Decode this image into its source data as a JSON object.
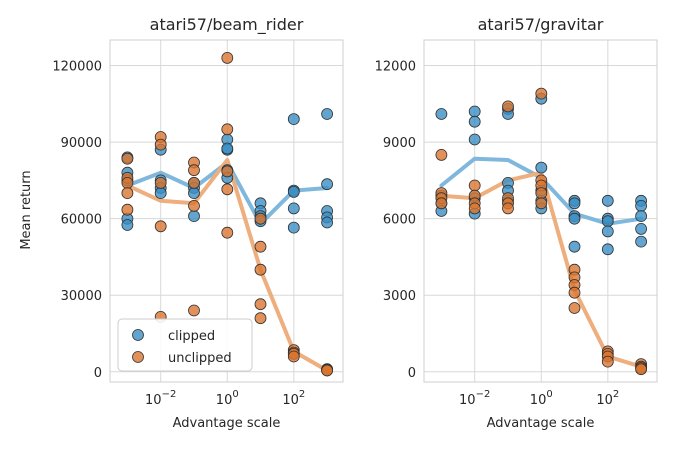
{
  "ylabel": "Mean return",
  "xlabel": "Advantage scale",
  "legend": {
    "placement": "lower-left",
    "entries": [
      {
        "label": "clipped",
        "color": "#3a8fc4"
      },
      {
        "label": "unclipped",
        "color": "#d9752f"
      }
    ]
  },
  "colors": {
    "clipped_point": "#3a8fc4",
    "unclipped_point": "#d9752f",
    "clipped_line": "#7fb8dc",
    "unclipped_line": "#eeae7d",
    "grid": "#d8d8d8"
  },
  "chart_data": [
    {
      "type": "scatter",
      "title": "atari57/beam_rider",
      "xlabel": "Advantage scale",
      "ylabel": "Mean return",
      "xscale": "log",
      "x_ticks": [
        0.01,
        1,
        100
      ],
      "x_tick_labels": [
        {
          "base": "10",
          "exp": "−2"
        },
        {
          "base": "10",
          "exp": "0"
        },
        {
          "base": "10",
          "exp": "2"
        }
      ],
      "xlim": [
        0.0003,
        3000
      ],
      "yticks": [
        0,
        30000,
        60000,
        90000,
        120000
      ],
      "ytick_labels": [
        "0",
        "30000",
        "60000",
        "90000",
        "120000"
      ],
      "ylim": [
        -4000,
        130000
      ],
      "grid": true,
      "legend": true,
      "x": [
        0.001,
        0.01,
        0.1,
        1,
        10,
        100,
        1000
      ],
      "series": [
        {
          "name": "clipped",
          "mean_line": [
            73000,
            78000,
            72000,
            82000,
            58000,
            71000,
            72000
          ],
          "points": [
            [
              0.001,
              84000
            ],
            [
              0.001,
              78000
            ],
            [
              0.001,
              60000
            ],
            [
              0.001,
              57500
            ],
            [
              0.001,
              75000
            ],
            [
              0.01,
              87000
            ],
            [
              0.01,
              75000
            ],
            [
              0.01,
              72000
            ],
            [
              0.01,
              70000
            ],
            [
              0.1,
              74000
            ],
            [
              0.1,
              72000
            ],
            [
              0.1,
              61000
            ],
            [
              0.1,
              70000
            ],
            [
              1,
              91000
            ],
            [
              1,
              87000
            ],
            [
              1,
              87500
            ],
            [
              1,
              79000
            ],
            [
              1,
              76000
            ],
            [
              10,
              66000
            ],
            [
              10,
              63000
            ],
            [
              10,
              61000
            ],
            [
              10,
              59000
            ],
            [
              100,
              99000
            ],
            [
              100,
              71000
            ],
            [
              100,
              70500
            ],
            [
              100,
              64000
            ],
            [
              100,
              56500
            ],
            [
              1000,
              101000
            ],
            [
              1000,
              73500
            ],
            [
              1000,
              63000
            ],
            [
              1000,
              60500
            ],
            [
              1000,
              58500
            ]
          ]
        },
        {
          "name": "unclipped",
          "mean_line": [
            73000,
            67000,
            66000,
            83000,
            40000,
            8000,
            500
          ],
          "points": [
            [
              0.001,
              83500
            ],
            [
              0.001,
              76000
            ],
            [
              0.001,
              74000
            ],
            [
              0.001,
              70000
            ],
            [
              0.001,
              63500
            ],
            [
              0.01,
              92000
            ],
            [
              0.01,
              89000
            ],
            [
              0.01,
              74000
            ],
            [
              0.01,
              57000
            ],
            [
              0.01,
              21500
            ],
            [
              0.1,
              82000
            ],
            [
              0.1,
              79000
            ],
            [
              0.1,
              74000
            ],
            [
              0.1,
              65000
            ],
            [
              0.1,
              24000
            ],
            [
              1,
              123000
            ],
            [
              1,
              95000
            ],
            [
              1,
              78500
            ],
            [
              1,
              71500
            ],
            [
              1,
              54500
            ],
            [
              10,
              60000
            ],
            [
              10,
              49000
            ],
            [
              10,
              40000
            ],
            [
              10,
              26500
            ],
            [
              10,
              21000
            ],
            [
              100,
              8500
            ],
            [
              100,
              7500
            ],
            [
              100,
              7000
            ],
            [
              100,
              6000
            ],
            [
              1000,
              1000
            ],
            [
              1000,
              800
            ],
            [
              1000,
              600
            ],
            [
              1000,
              500
            ]
          ]
        }
      ]
    },
    {
      "type": "scatter",
      "title": "atari57/gravitar",
      "xlabel": "Advantage scale",
      "xscale": "log",
      "x_ticks": [
        0.01,
        1,
        100
      ],
      "x_tick_labels": [
        {
          "base": "10",
          "exp": "−2"
        },
        {
          "base": "10",
          "exp": "0"
        },
        {
          "base": "10",
          "exp": "2"
        }
      ],
      "xlim": [
        0.0003,
        3000
      ],
      "yticks": [
        0,
        3000,
        6000,
        9000,
        12000
      ],
      "ytick_labels": [
        "0",
        "3000",
        "6000",
        "9000",
        "12000"
      ],
      "ylim": [
        -400,
        13000
      ],
      "grid": true,
      "legend": false,
      "x": [
        0.001,
        0.01,
        0.1,
        1,
        10,
        100,
        1000
      ],
      "series": [
        {
          "name": "clipped",
          "mean_line": [
            7300,
            8350,
            8300,
            7600,
            6200,
            5800,
            6000
          ],
          "points": [
            [
              0.001,
              10100
            ],
            [
              0.001,
              6900
            ],
            [
              0.001,
              6600
            ],
            [
              0.001,
              6300
            ],
            [
              0.01,
              10200
            ],
            [
              0.01,
              9800
            ],
            [
              0.01,
              9100
            ],
            [
              0.01,
              6800
            ],
            [
              0.01,
              6200
            ],
            [
              0.1,
              10300
            ],
            [
              0.1,
              10100
            ],
            [
              0.1,
              7400
            ],
            [
              0.1,
              7100
            ],
            [
              0.1,
              6700
            ],
            [
              1,
              10700
            ],
            [
              1,
              8000
            ],
            [
              1,
              7100
            ],
            [
              1,
              6700
            ],
            [
              1,
              6400
            ],
            [
              10,
              6700
            ],
            [
              10,
              6600
            ],
            [
              10,
              6100
            ],
            [
              10,
              6000
            ],
            [
              10,
              4900
            ],
            [
              100,
              6700
            ],
            [
              100,
              6000
            ],
            [
              100,
              5900
            ],
            [
              100,
              5500
            ],
            [
              100,
              4800
            ],
            [
              1000,
              6700
            ],
            [
              1000,
              6500
            ],
            [
              1000,
              6100
            ],
            [
              1000,
              5600
            ],
            [
              1000,
              5100
            ]
          ]
        },
        {
          "name": "unclipped",
          "mean_line": [
            6900,
            6800,
            7500,
            7800,
            3200,
            600,
            200
          ],
          "points": [
            [
              0.001,
              8500
            ],
            [
              0.001,
              7000
            ],
            [
              0.001,
              6800
            ],
            [
              0.001,
              6600
            ],
            [
              0.01,
              7300
            ],
            [
              0.01,
              6900
            ],
            [
              0.01,
              6600
            ],
            [
              0.01,
              6400
            ],
            [
              0.1,
              10400
            ],
            [
              0.1,
              6800
            ],
            [
              0.1,
              6600
            ],
            [
              0.1,
              6400
            ],
            [
              1,
              10900
            ],
            [
              1,
              7500
            ],
            [
              1,
              7300
            ],
            [
              1,
              7000
            ],
            [
              1,
              6600
            ],
            [
              10,
              4000
            ],
            [
              10,
              3700
            ],
            [
              10,
              3400
            ],
            [
              10,
              3100
            ],
            [
              10,
              2500
            ],
            [
              100,
              800
            ],
            [
              100,
              700
            ],
            [
              100,
              600
            ],
            [
              100,
              400
            ],
            [
              1000,
              300
            ],
            [
              1000,
              200
            ],
            [
              1000,
              150
            ],
            [
              1000,
              100
            ]
          ]
        }
      ]
    }
  ]
}
